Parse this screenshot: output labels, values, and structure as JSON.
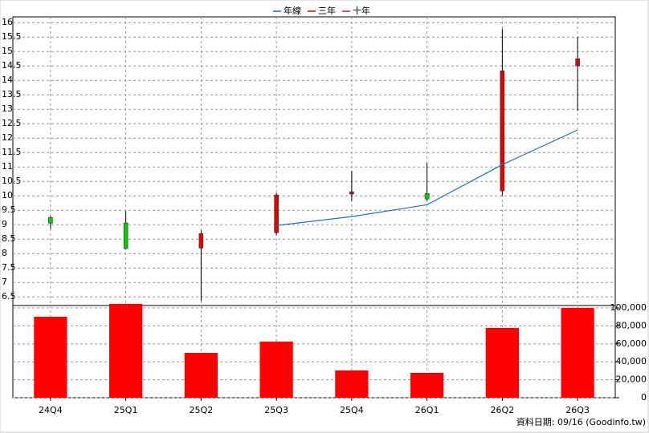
{
  "chart_data": {
    "type": "candlestick",
    "categories": [
      "24Q4",
      "25Q1",
      "25Q2",
      "25Q3",
      "25Q4",
      "26Q1",
      "26Q2",
      "26Q3"
    ],
    "open": [
      9.25,
      9.06,
      8.19,
      8.72,
      10.06,
      10.08,
      10.17,
      14.5
    ],
    "high": [
      9.3,
      9.47,
      8.8,
      10.1,
      10.86,
      11.14,
      15.78,
      15.5
    ],
    "low": [
      8.85,
      8.17,
      6.36,
      8.64,
      9.83,
      9.83,
      10.0,
      12.94
    ],
    "close": [
      9.05,
      8.17,
      8.69,
      10.03,
      10.14,
      9.89,
      14.33,
      14.75
    ],
    "up_color": "#e00000",
    "down_color": "#00cc00",
    "series": [
      {
        "name": "年線",
        "color": "#1f6fc5",
        "values": [
          null,
          null,
          null,
          8.97,
          9.28,
          9.69,
          11.08,
          12.28
        ]
      },
      {
        "name": "三年",
        "color": "#e00000",
        "values": [
          null,
          null,
          null,
          null,
          null,
          null,
          null,
          null
        ]
      },
      {
        "name": "十年",
        "color": "#a0207f",
        "values": [
          null,
          null,
          null,
          null,
          null,
          null,
          null,
          null
        ]
      }
    ],
    "ylim": [
      6.2,
      16.2
    ],
    "yticks": [
      6.5,
      7,
      7.5,
      8,
      8.5,
      9,
      9.5,
      10,
      10.5,
      11,
      11.5,
      12,
      12.5,
      13,
      13.5,
      14,
      14.5,
      15,
      15.5,
      16
    ],
    "volume": {
      "color": "#ff0000",
      "values": [
        90200,
        104500,
        50000,
        62500,
        30400,
        27700,
        77700,
        100000
      ],
      "ylim": [
        0,
        105400
      ],
      "yticks": [
        0,
        {
          "value": 20000,
          "label": "20,000"
        },
        {
          "value": 40000,
          "label": "40,000"
        },
        {
          "value": 60000,
          "label": "60,000"
        },
        {
          "value": 80000,
          "label": "80,000"
        },
        {
          "value": 100000,
          "label": "100,000"
        }
      ]
    },
    "grid": true,
    "footer": "資料日期: 09/16  (Goodinfo.tw)"
  }
}
